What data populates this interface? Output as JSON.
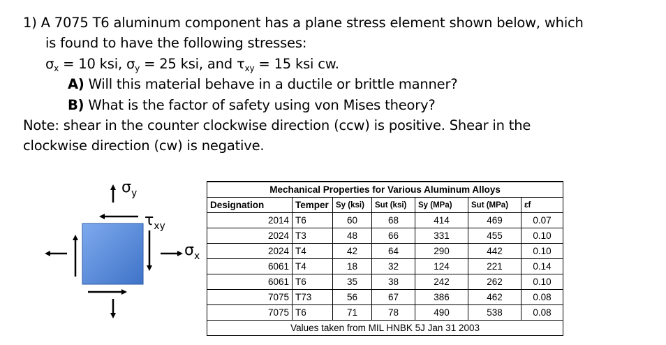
{
  "problem": {
    "line1": "1)  A 7075 T6 aluminum component has a plane stress element shown below, which",
    "line2": "is found to have the following stresses:",
    "stress_sx": "σ",
    "stress_sx_sub": "x",
    "stress_sx_val": " = 10 ksi, ",
    "stress_sy": "σ",
    "stress_sy_sub": "y",
    "stress_sy_val": " = 25 ksi, and ",
    "stress_txy": "τ",
    "stress_txy_sub": "xy",
    "stress_txy_val": " = 15 ksi cw.",
    "qa_label": "A)",
    "qa_text": " Will this material  behave in a ductile or brittle manner?",
    "qb_label": "B)",
    "qb_text": " What is the factor of safety using von Mises theory?",
    "note1": "Note: shear in the counter clockwise direction (ccw) is positive. Shear in the",
    "note2": "clockwise direction (cw) is negative."
  },
  "diagram": {
    "sigma_y": "σ",
    "sigma_y_sub": "y",
    "tau_xy": "τ",
    "tau_xy_sub": "xy",
    "sigma_x": "σ",
    "sigma_x_sub": "x",
    "element_color": "#5b8fdc"
  },
  "table": {
    "title": "Mechanical Properties for Various Aluminum Alloys",
    "headers": [
      "Designation",
      "Temper",
      "Sy (ksi)",
      "Sut (ksi)",
      "Sy (MPa)",
      "Sut (MPa)",
      "εf"
    ],
    "rows": [
      [
        "2014",
        "T6",
        "60",
        "68",
        "414",
        "469",
        "0.07"
      ],
      [
        "2024",
        "T3",
        "48",
        "66",
        "331",
        "455",
        "0.10"
      ],
      [
        "2024",
        "T4",
        "42",
        "64",
        "290",
        "442",
        "0.10"
      ],
      [
        "6061",
        "T4",
        "18",
        "32",
        "124",
        "221",
        "0.14"
      ],
      [
        "6061",
        "T6",
        "35",
        "38",
        "242",
        "262",
        "0.10"
      ],
      [
        "7075",
        "T73",
        "56",
        "67",
        "386",
        "462",
        "0.08"
      ],
      [
        "7075",
        "T6",
        "71",
        "78",
        "490",
        "538",
        "0.08"
      ]
    ],
    "footnote": "Values taken from MIL HNBK 5J Jan 31 2003"
  }
}
